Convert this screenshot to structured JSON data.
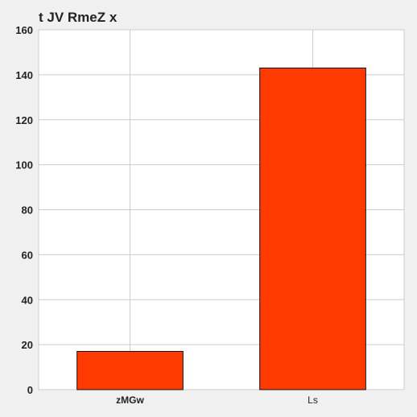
{
  "chart_data": {
    "type": "bar",
    "title": "t JV RmeZ x",
    "xlabel": "",
    "ylabel": "",
    "categories": [
      "zMGw",
      "Ls"
    ],
    "values": [
      17,
      143
    ],
    "ylim": [
      0,
      160
    ],
    "yticks": [
      0,
      20,
      40,
      60,
      80,
      100,
      120,
      140,
      160
    ],
    "grid": true,
    "legend": "none",
    "colors": {
      "bar": "#ff3a00",
      "bar_edge": "#111111",
      "plot_background": "#ffffff",
      "page_background": "#f0f0f0",
      "grid": "#cccccc"
    }
  }
}
